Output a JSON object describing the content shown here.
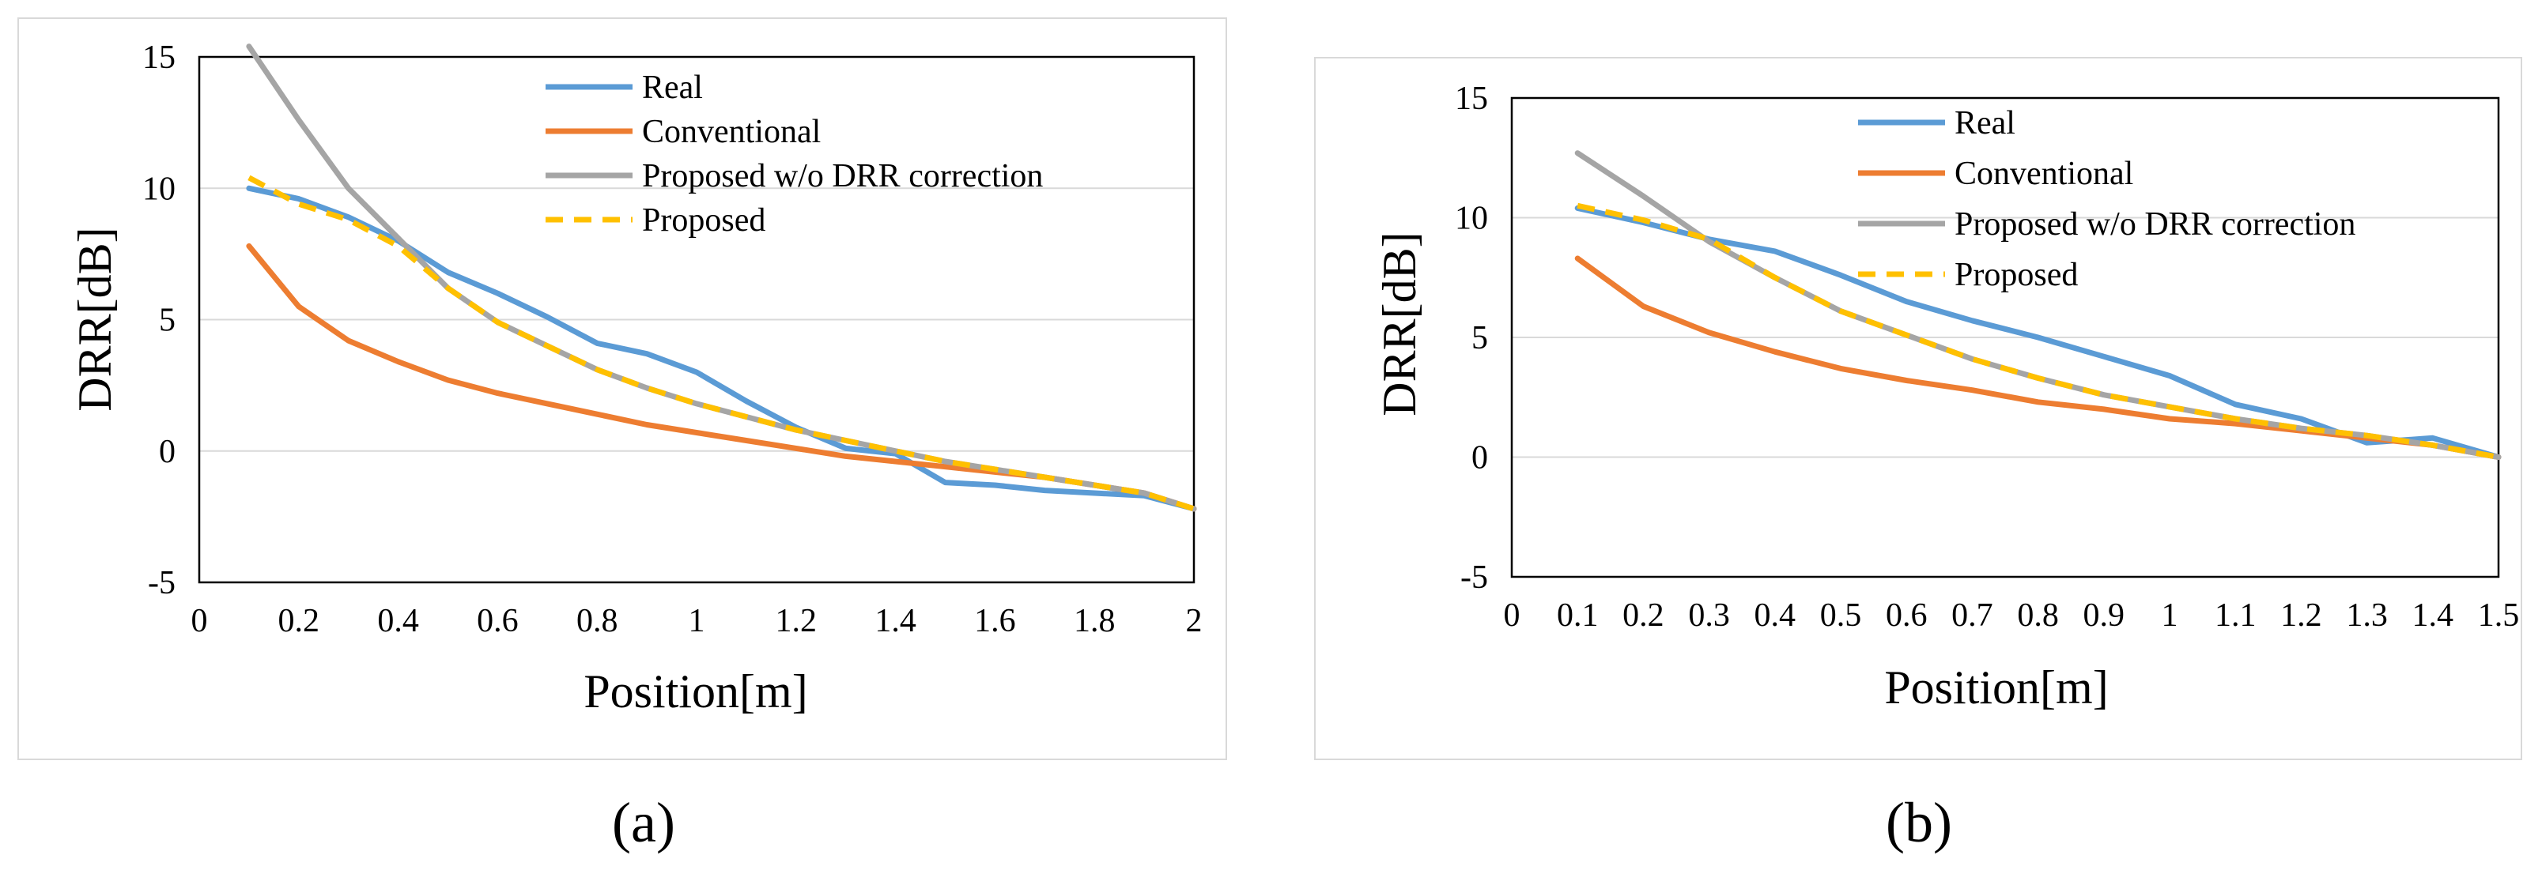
{
  "colors": {
    "Real": "#5b9bd5",
    "Conventional": "#ed7d31",
    "Proposed w/o DRR correction": "#a5a5a5",
    "Proposed": "#ffc000",
    "gridline": "#d9d9d9",
    "axis_box": "#000000"
  },
  "chart_data": [
    {
      "type": "line",
      "panel_label": "(a)",
      "xlabel": "Position[m]",
      "ylabel": "DRR[dB]",
      "xlim": [
        0,
        2
      ],
      "ylim": [
        -5,
        15
      ],
      "x_tick_labels": [
        "0",
        "0.2",
        "0.4",
        "0.6",
        "0.8",
        "1",
        "1.2",
        "1.4",
        "1.6",
        "1.8",
        "2"
      ],
      "y_tick_labels": [
        "-5",
        "0",
        "5",
        "10",
        "15"
      ],
      "y_ticks": [
        -5,
        0,
        5,
        10,
        15
      ],
      "legend_position": "top-center",
      "x": [
        0.1,
        0.2,
        0.3,
        0.4,
        0.5,
        0.6,
        0.7,
        0.8,
        0.9,
        1.0,
        1.1,
        1.2,
        1.3,
        1.4,
        1.5,
        1.6,
        1.7,
        1.8,
        1.9,
        2.0
      ],
      "series": [
        {
          "name": "Real",
          "style": "solid",
          "values": [
            10.0,
            9.6,
            8.9,
            8.0,
            6.8,
            6.0,
            5.1,
            4.1,
            3.7,
            3.0,
            1.9,
            0.9,
            0.1,
            -0.1,
            -1.2,
            -1.3,
            -1.5,
            -1.6,
            -1.7,
            -2.2
          ]
        },
        {
          "name": "Conventional",
          "style": "solid",
          "values": [
            7.8,
            5.5,
            4.2,
            3.4,
            2.7,
            2.2,
            1.8,
            1.4,
            1.0,
            0.7,
            0.4,
            0.1,
            -0.2,
            -0.4,
            -0.6,
            -0.8,
            -1.0,
            -1.3,
            -1.6,
            -2.2
          ]
        },
        {
          "name": "Proposed w/o DRR correction",
          "style": "solid",
          "values": [
            15.4,
            12.6,
            10.0,
            8.1,
            6.2,
            4.9,
            4.0,
            3.1,
            2.4,
            1.8,
            1.3,
            0.8,
            0.4,
            0.0,
            -0.4,
            -0.7,
            -1.0,
            -1.3,
            -1.6,
            -2.2
          ]
        },
        {
          "name": "Proposed",
          "style": "dashed",
          "values": [
            10.4,
            9.4,
            8.8,
            7.8,
            6.2,
            4.9,
            4.0,
            3.1,
            2.4,
            1.8,
            1.3,
            0.8,
            0.4,
            0.0,
            -0.4,
            -0.7,
            -1.0,
            -1.3,
            -1.6,
            -2.2
          ]
        }
      ]
    },
    {
      "type": "line",
      "panel_label": "(b)",
      "xlabel": "Position[m]",
      "ylabel": "DRR[dB]",
      "xlim": [
        0,
        1.5
      ],
      "ylim": [
        -5,
        15
      ],
      "x_tick_labels": [
        "0",
        "0.1",
        "0.2",
        "0.3",
        "0.4",
        "0.5",
        "0.6",
        "0.7",
        "0.8",
        "0.9",
        "1",
        "1.1",
        "1.2",
        "1.3",
        "1.4",
        "1.5"
      ],
      "y_tick_labels": [
        "-5",
        "0",
        "5",
        "10",
        "15"
      ],
      "y_ticks": [
        -5,
        0,
        5,
        10,
        15
      ],
      "legend_position": "top-center",
      "x": [
        0.1,
        0.2,
        0.3,
        0.4,
        0.5,
        0.6,
        0.7,
        0.8,
        0.9,
        1.0,
        1.1,
        1.2,
        1.3,
        1.4,
        1.5
      ],
      "series": [
        {
          "name": "Real",
          "style": "solid",
          "values": [
            10.4,
            9.8,
            9.1,
            8.6,
            7.6,
            6.5,
            5.7,
            5.0,
            4.2,
            3.4,
            2.2,
            1.6,
            0.6,
            0.8,
            0.0
          ]
        },
        {
          "name": "Conventional",
          "style": "solid",
          "values": [
            8.3,
            6.3,
            5.2,
            4.4,
            3.7,
            3.2,
            2.8,
            2.3,
            2.0,
            1.6,
            1.4,
            1.1,
            0.8,
            0.5,
            0.0
          ]
        },
        {
          "name": "Proposed w/o DRR correction",
          "style": "solid",
          "values": [
            12.7,
            10.9,
            9.0,
            7.5,
            6.1,
            5.1,
            4.1,
            3.3,
            2.6,
            2.1,
            1.6,
            1.2,
            0.9,
            0.5,
            0.0
          ]
        },
        {
          "name": "Proposed",
          "style": "dashed",
          "values": [
            10.5,
            9.9,
            9.1,
            7.5,
            6.1,
            5.1,
            4.1,
            3.3,
            2.6,
            2.1,
            1.6,
            1.2,
            0.9,
            0.5,
            0.0
          ]
        }
      ]
    }
  ]
}
